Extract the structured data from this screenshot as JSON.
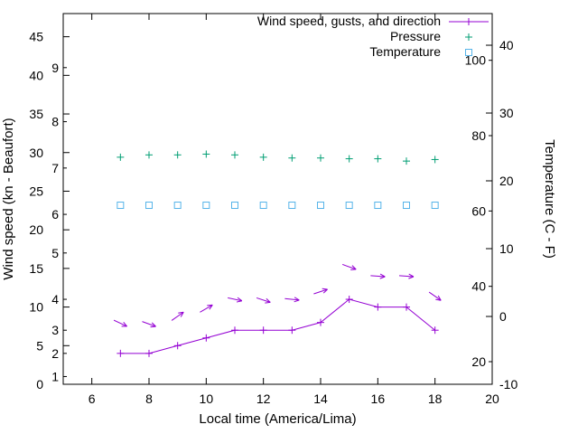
{
  "chart_data": {
    "type": "line",
    "title": "",
    "xlabel": "Local time (America/Lima)",
    "ylabel": "Wind speed (kn - Beaufort)",
    "y2label": "Temperature (C - F)",
    "xlim": [
      5,
      20
    ],
    "ylim": [
      0,
      48
    ],
    "y2lim": [
      -10,
      44.67
    ],
    "xticks": [
      6,
      8,
      10,
      12,
      14,
      16,
      18,
      20
    ],
    "yticks_kn": [
      0,
      5,
      10,
      15,
      20,
      25,
      30,
      35,
      40,
      45
    ],
    "beaufort_ticks": [
      {
        "label": "1",
        "kn": 1
      },
      {
        "label": "2",
        "kn": 4
      },
      {
        "label": "3",
        "kn": 7
      },
      {
        "label": "4",
        "kn": 11
      },
      {
        "label": "5",
        "kn": 17
      },
      {
        "label": "6",
        "kn": 22
      },
      {
        "label": "7",
        "kn": 28
      },
      {
        "label": "8",
        "kn": 34
      },
      {
        "label": "9",
        "kn": 41
      }
    ],
    "y2ticks_c": [
      -10,
      0,
      10,
      20,
      30,
      40
    ],
    "y2ticks_f": [
      20,
      40,
      60,
      80,
      100
    ],
    "grid": false,
    "background": "#ffffff",
    "axis_color": "#000000",
    "legend": {
      "position": "top-right",
      "entries": [
        {
          "label": "Wind speed, gusts, and direction",
          "sample": "line-plus",
          "color": "#9400d3"
        },
        {
          "label": "Pressure",
          "sample": "plus",
          "color": "#009e73"
        },
        {
          "label": "Temperature",
          "sample": "square",
          "color": "#56b4e9"
        }
      ]
    },
    "x": [
      7,
      8,
      9,
      10,
      11,
      12,
      13,
      14,
      15,
      16,
      17,
      18
    ],
    "series": [
      {
        "name": "Wind speed, gusts, and direction",
        "color": "#9400d3",
        "marker": "plus",
        "axis": "left-kn",
        "values": [
          4,
          4,
          5,
          6,
          7,
          7,
          7,
          8,
          11,
          10,
          10,
          7
        ]
      },
      {
        "name": "Gusts (arrows show wind direction)",
        "color": "#9400d3",
        "marker": "arrow",
        "axis": "left-kn",
        "values": [
          7.9,
          7.8,
          8.8,
          9.8,
          11.0,
          10.9,
          11.0,
          12.0,
          15.2,
          14.0,
          14.0,
          11.4
        ],
        "direction_deg": [
          -25,
          -20,
          35,
          30,
          -12,
          -18,
          -6,
          18,
          -20,
          -4,
          -4,
          -35
        ]
      },
      {
        "name": "Pressure",
        "color": "#009e73",
        "marker": "plus",
        "axis": "left-kn",
        "values": [
          29.4,
          29.7,
          29.7,
          29.8,
          29.7,
          29.4,
          29.3,
          29.3,
          29.2,
          29.2,
          28.9,
          29.1
        ]
      },
      {
        "name": "Temperature",
        "color": "#56b4e9",
        "marker": "square",
        "axis": "right-c",
        "values": [
          16.4,
          16.4,
          16.4,
          16.4,
          16.4,
          16.4,
          16.4,
          16.4,
          16.4,
          16.4,
          16.4,
          16.4
        ]
      }
    ]
  }
}
